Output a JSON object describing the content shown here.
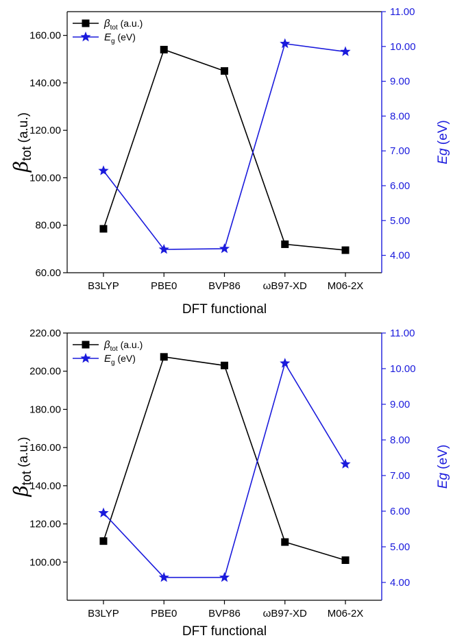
{
  "colors": {
    "left_series": "#000000",
    "right_series": "#1a1adc",
    "right_axis": "#1a1adc"
  },
  "chart_data": [
    {
      "type": "line",
      "categories": [
        "B3LYP",
        "PBE0",
        "BVP86",
        "ωB97-XD",
        "M06-2X"
      ],
      "xlabel": "DFT functional",
      "ylabel": {
        "main": "β",
        "sub": "tot",
        "unit": " (a.u.)"
      },
      "y2label": {
        "main": "Eg",
        "unit": " (eV)"
      },
      "ylim": [
        60,
        170
      ],
      "yticks": [
        "60.00",
        "80.00",
        "100.00",
        "120.00",
        "140.00",
        "160.00"
      ],
      "y2lim": [
        3.5,
        11
      ],
      "y2ticks": [
        "4.00",
        "5.00",
        "6.00",
        "7.00",
        "8.00",
        "9.00",
        "10.00",
        "11.00"
      ],
      "legend_position": "top-left",
      "series": [
        {
          "name": {
            "main": "β",
            "sub": "tot",
            "unit": " (a.u.)"
          },
          "axis": "left",
          "marker": "square",
          "values": [
            78.5,
            154,
            145,
            72,
            69.5
          ]
        },
        {
          "name": {
            "main": "E",
            "sub": "g",
            "unit": " (eV)"
          },
          "axis": "right",
          "marker": "star",
          "values": [
            6.43,
            4.17,
            4.19,
            10.08,
            9.85
          ]
        }
      ]
    },
    {
      "type": "line",
      "categories": [
        "B3LYP",
        "PBE0",
        "BVP86",
        "ωB97-XD",
        "M06-2X"
      ],
      "xlabel": "DFT functional",
      "ylabel": {
        "main": "β",
        "sub": "tot",
        "unit": " (a.u.)"
      },
      "y2label": {
        "main": "Eg",
        "unit": " (eV)"
      },
      "ylim": [
        80,
        220
      ],
      "yticks": [
        "100.00",
        "120.00",
        "140.00",
        "160.00",
        "180.00",
        "200.00",
        "220.00"
      ],
      "y2lim": [
        3.5,
        11
      ],
      "y2ticks": [
        "4.00",
        "5.00",
        "6.00",
        "7.00",
        "8.00",
        "9.00",
        "10.00",
        "11.00"
      ],
      "legend_position": "top-left",
      "series": [
        {
          "name": {
            "main": "β",
            "sub": "tot",
            "unit": " (a.u.)"
          },
          "axis": "left",
          "marker": "square",
          "values": [
            111,
            207.5,
            203,
            110.5,
            101
          ]
        },
        {
          "name": {
            "main": "E",
            "sub": "g",
            "unit": " (eV)"
          },
          "axis": "right",
          "marker": "star",
          "values": [
            5.95,
            4.14,
            4.14,
            10.15,
            7.32
          ]
        }
      ]
    }
  ]
}
